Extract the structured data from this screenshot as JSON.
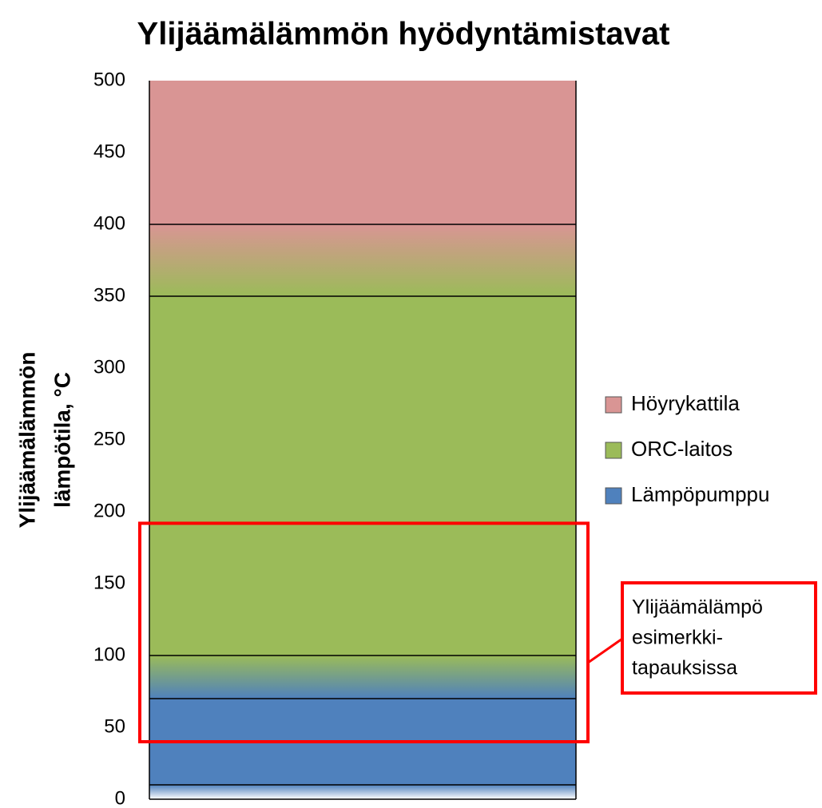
{
  "chart_data": {
    "type": "range",
    "title": "Ylijäämälämmön hyödyntämistavat",
    "ylabel": [
      "Ylijäämälämmön",
      "lämpötila, °C"
    ],
    "ylim": [
      0,
      500
    ],
    "yticks": [
      0,
      50,
      100,
      150,
      200,
      250,
      300,
      350,
      400,
      450,
      500
    ],
    "series": [
      {
        "name": "Höyrykattila",
        "color": "#d99594",
        "range": [
          350,
          500
        ]
      },
      {
        "name": "ORC-laitos",
        "color": "#9bbb59",
        "range": [
          70,
          400
        ]
      },
      {
        "name": "Lämpöpumppu",
        "color": "#4f81bd",
        "range": [
          10,
          100
        ]
      }
    ],
    "annotation": {
      "text": [
        "Ylijäämälämpö",
        "esimerkki-",
        "tapauksissa"
      ],
      "range": [
        40,
        192
      ],
      "color": "#ff0000"
    }
  }
}
